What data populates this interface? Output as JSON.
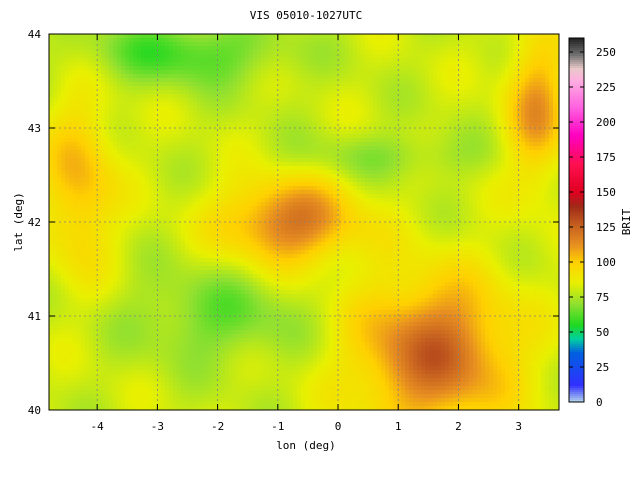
{
  "chart_data": {
    "type": "heatmap",
    "title": "VIS 05010-1027UTC",
    "xlabel": "lon (deg)",
    "ylabel": "lat (deg)",
    "xlim": [
      -4.8,
      3.67
    ],
    "ylim": [
      40,
      44
    ],
    "xticks": [
      -4,
      -3,
      -2,
      -1,
      0,
      1,
      2,
      3
    ],
    "yticks": [
      40,
      41,
      42,
      43,
      44
    ],
    "grid": true,
    "colorbar": {
      "label": "BRIT",
      "range": [
        0,
        260
      ],
      "ticks": [
        0,
        25,
        50,
        75,
        100,
        125,
        150,
        175,
        200,
        225,
        250
      ],
      "stops": [
        {
          "v": 0,
          "color": "#b4d4ec"
        },
        {
          "v": 12,
          "color": "#3030ff"
        },
        {
          "v": 35,
          "color": "#0060e0"
        },
        {
          "v": 45,
          "color": "#00d0a0"
        },
        {
          "v": 55,
          "color": "#20d820"
        },
        {
          "v": 70,
          "color": "#90e030"
        },
        {
          "v": 85,
          "color": "#e8f000"
        },
        {
          "v": 100,
          "color": "#ffd000"
        },
        {
          "v": 112,
          "color": "#e89020"
        },
        {
          "v": 125,
          "color": "#c86420"
        },
        {
          "v": 140,
          "color": "#a02818"
        },
        {
          "v": 150,
          "color": "#e00020"
        },
        {
          "v": 170,
          "color": "#ff1050"
        },
        {
          "v": 190,
          "color": "#ff00c0"
        },
        {
          "v": 210,
          "color": "#ff60e0"
        },
        {
          "v": 230,
          "color": "#ffb0e0"
        },
        {
          "v": 238,
          "color": "#e8c8c8"
        },
        {
          "v": 248,
          "color": "#707070"
        },
        {
          "v": 260,
          "color": "#202020"
        }
      ]
    },
    "fill_field": {
      "base": 80,
      "features": [
        {
          "name": "sea",
          "lon": -2.6,
          "lat": 43.8,
          "sx": 1.6,
          "sy": 0.35,
          "amp": -20
        },
        {
          "name": "coast-east",
          "lon": 3.3,
          "lat": 43.2,
          "sx": 0.5,
          "sy": 0.8,
          "amp": 30
        },
        {
          "name": "ebro-basin",
          "lon": -0.8,
          "lat": 42.0,
          "sx": 1.1,
          "sy": 0.45,
          "amp": 40
        },
        {
          "name": "sw-plateau",
          "lon": -4.3,
          "lat": 42.4,
          "sx": 0.6,
          "sy": 0.9,
          "amp": 25
        },
        {
          "name": "se-lowland",
          "lon": 1.6,
          "lat": 40.6,
          "sx": 1.3,
          "sy": 0.8,
          "amp": 45
        },
        {
          "name": "pyrenees",
          "lon": 0.8,
          "lat": 42.7,
          "sx": 1.6,
          "sy": 0.25,
          "amp": -10
        },
        {
          "name": "iberian-range",
          "lon": -2.0,
          "lat": 41.0,
          "sx": 1.4,
          "sy": 0.5,
          "amp": -15
        }
      ]
    }
  }
}
